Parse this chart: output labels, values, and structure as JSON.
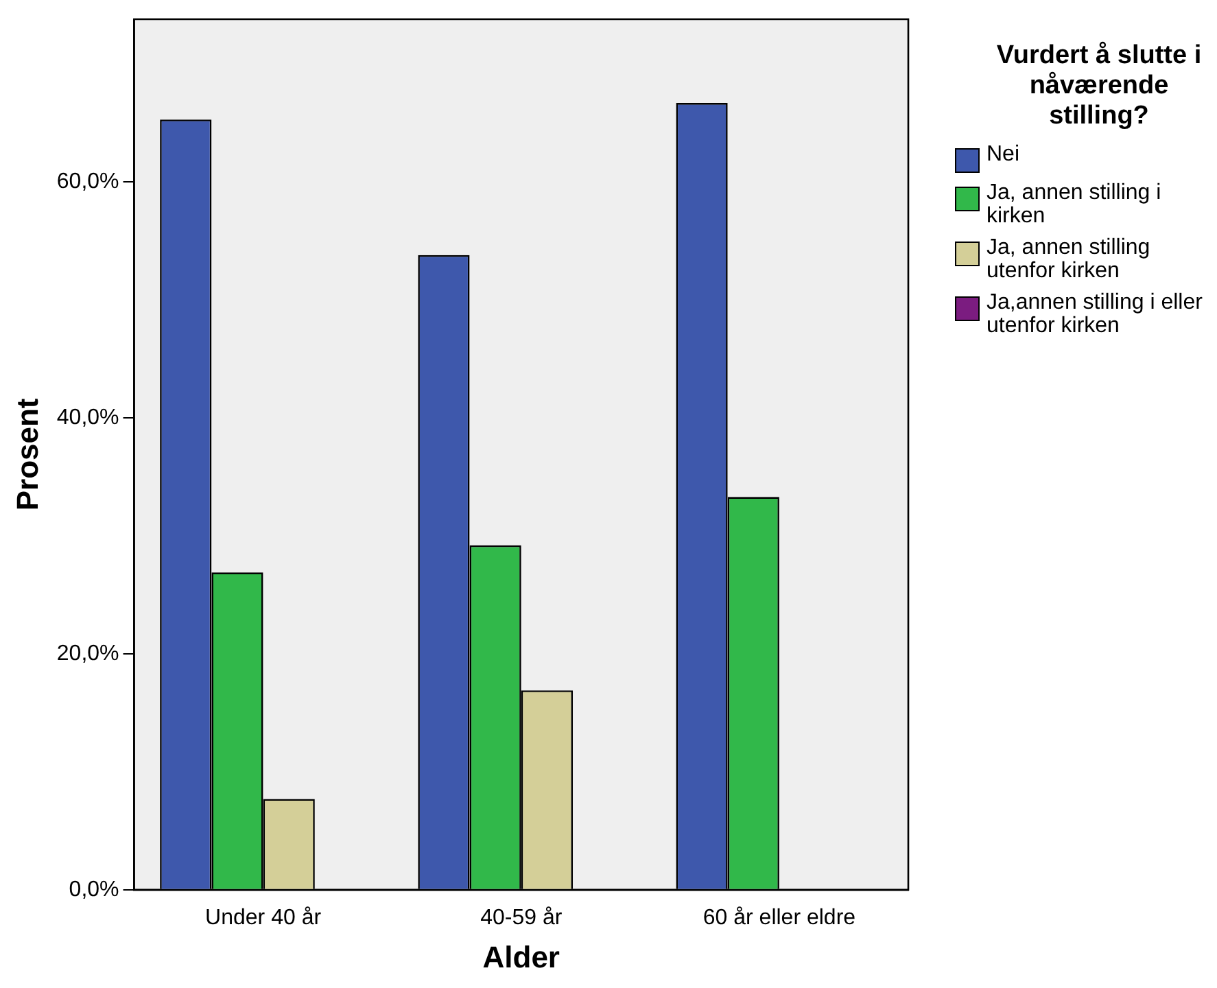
{
  "chart_data": {
    "type": "bar",
    "xlabel": "Alder",
    "ylabel": "Prosent",
    "legend_title": "Vurdert å slutte i nåværende stilling?",
    "legend": "right",
    "grid": false,
    "categories": [
      "Under 40 år",
      "40-59 år",
      "60 år eller eldre"
    ],
    "series": [
      {
        "name": "Nei",
        "color": "#3e58ac",
        "values": [
          65.3,
          53.8,
          66.7
        ]
      },
      {
        "name": "Ja, annen stilling i kirken",
        "color": "#31b84a",
        "values": [
          26.9,
          29.2,
          33.3
        ]
      },
      {
        "name": "Ja, annen stilling utenfor kirken",
        "color": "#d4cf98",
        "values": [
          7.7,
          16.9,
          0
        ]
      },
      {
        "name": "Ja,annen stilling i eller utenfor kirken",
        "color": "#7b1c80",
        "values": [
          0,
          0,
          0
        ]
      }
    ],
    "ylim": [
      0,
      73.8
    ],
    "yticks": [
      {
        "value": 0,
        "label": "0,0%"
      },
      {
        "value": 20,
        "label": "20,0%"
      },
      {
        "value": 40,
        "label": "40,0%"
      },
      {
        "value": 60,
        "label": "60,0%"
      }
    ]
  }
}
